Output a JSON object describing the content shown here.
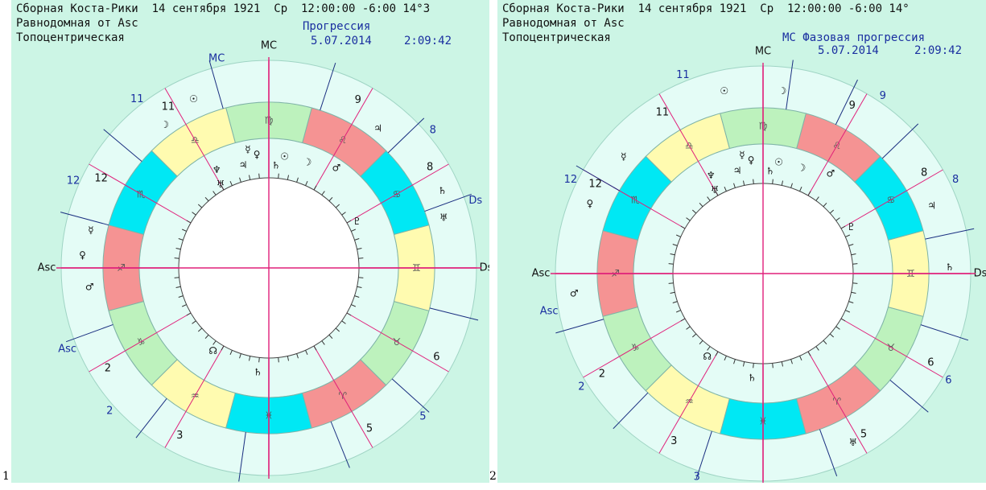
{
  "panels": [
    {
      "number": "1",
      "header": {
        "line1": "Сборная Коста-Рики  14 сентября 1921  Ср  12:00:00 -6:00 14°3",
        "line2": "Равнодомная от Asc",
        "line3": "Топоцентрическая",
        "right_title": "Прогрессия",
        "right_date": "5.07.2014",
        "right_time": "2:09:42"
      },
      "inner_house_numbers": [
        "11",
        "12",
        "2",
        "3",
        "5",
        "6",
        "8",
        "9"
      ],
      "outer_house_numbers": [
        "11",
        "12",
        "2",
        "5",
        "8"
      ],
      "axis_labels": {
        "mc": "MC",
        "asc": "Asc",
        "ds": "Ds",
        "mc_outer": "MC",
        "asc_outer": "Asc",
        "ds_outer": "Ds"
      }
    },
    {
      "number": "2",
      "header": {
        "line1": "Сборная Коста-Рики  14 сентября 1921  Ср  12:00:00 -6:00 14°",
        "line2": "Равнодомная от Asc",
        "line3": "Топоцентрическая",
        "right_title": "MC Фазовая прогрессия",
        "right_date": "5.07.2014",
        "right_time": "2:09:42"
      },
      "inner_house_numbers": [
        "11",
        "12",
        "2",
        "3",
        "5",
        "6",
        "8",
        "9"
      ],
      "outer_house_numbers": [
        "11",
        "12",
        "2",
        "3",
        "6",
        "8",
        "9"
      ],
      "axis_labels": {
        "mc": "MC",
        "asc": "Asc",
        "ds": "Ds",
        "asc_outer": "Asc"
      }
    }
  ],
  "colors": {
    "background": "#ccf5e5",
    "ring_light": "#e4fcf6",
    "fire": "#f59393",
    "earth": "#bdf2bd",
    "air": "#fffbb0",
    "water": "#00e8f4",
    "house_line": "#e0207a",
    "outer_line": "#1a2f80",
    "label_blue": "#1a2fa0"
  }
}
